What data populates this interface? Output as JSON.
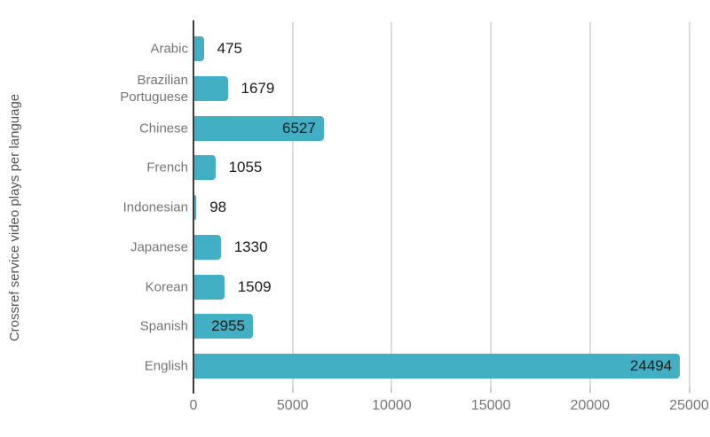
{
  "chart_data": {
    "type": "bar",
    "orientation": "horizontal",
    "title": "",
    "xlabel": "",
    "ylabel": "Crossref service video plays per language",
    "categories": [
      "Arabic",
      "Brazilian Portuguese",
      "Chinese",
      "French",
      "Indonesian",
      "Japanese",
      "Korean",
      "Spanish",
      "English"
    ],
    "values": [
      475,
      1679,
      6527,
      1055,
      98,
      1330,
      1509,
      2955,
      24494
    ],
    "value_labels": [
      "475",
      "1679",
      "6527",
      "1055",
      "98",
      "1330",
      "1509",
      "2955",
      "24494"
    ],
    "xlim": [
      0,
      25000
    ],
    "xticks": [
      0,
      5000,
      10000,
      15000,
      20000,
      25000
    ],
    "xtick_labels": [
      "0",
      "5000",
      "10000",
      "15000",
      "20000",
      "25000"
    ],
    "grid": true,
    "legend_position": "none",
    "styles": {
      "bar_color": "#42AFC4",
      "value_label_color": "#1b1b1b",
      "category_label_color": "#757575",
      "tick_label_color": "#757575",
      "axis_title_color": "#545454",
      "gridline_color": "#dcdcdc",
      "zero_axis_color": "#3c3c3c",
      "tick_mark_color": "#c9c9c9",
      "background": "#ffffff"
    }
  }
}
